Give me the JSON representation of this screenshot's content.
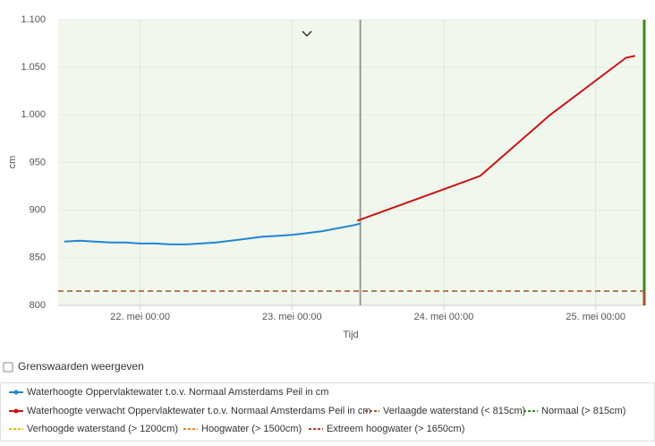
{
  "chart_data": {
    "type": "line",
    "x_label": "Tijd",
    "y_label": "cm",
    "xlim": [
      21.46,
      25.32
    ],
    "ylim": [
      800,
      1100
    ],
    "xticks": [
      {
        "value": 22,
        "label": "22. mei 00:00"
      },
      {
        "value": 23,
        "label": "23. mei 00:00"
      },
      {
        "value": 24,
        "label": "24. mei 00:00"
      },
      {
        "value": 25,
        "label": "25. mei 00:00"
      }
    ],
    "yticks": [
      800,
      850,
      900,
      950,
      {
        "value": 1000,
        "label": "1.000"
      },
      {
        "value": 1050,
        "label": "1.050"
      },
      {
        "value": 1100,
        "label": "1.100"
      }
    ],
    "grid": true,
    "now_line": 23.45,
    "series": [
      {
        "name": "Waterhoogte Oppervlaktewater t.o.v. Normaal Amsterdams Peil in cm",
        "color": "#1f86d4",
        "x": [
          21.5,
          21.6,
          21.7,
          21.8,
          21.9,
          22.0,
          22.1,
          22.2,
          22.3,
          22.4,
          22.5,
          22.6,
          22.7,
          22.8,
          22.9,
          23.0,
          23.1,
          23.2,
          23.3,
          23.4,
          23.45
        ],
        "values": [
          867,
          868,
          867,
          866,
          866,
          865,
          865,
          864,
          864,
          865,
          866,
          868,
          870,
          872,
          873,
          874,
          876,
          878,
          881,
          884,
          886
        ]
      },
      {
        "name": "Waterhoogte verwacht Oppervlaktewater t.o.v. Normaal Amsterdams Peil in cm",
        "color": "#c81414",
        "x": [
          23.43,
          24.0,
          24.24,
          24.7,
          25.2,
          25.26
        ],
        "values": [
          889,
          922,
          936,
          1000,
          1060,
          1062
        ]
      }
    ],
    "thresholds": [
      {
        "name": "Verlaagde waterstand (< 815cm)",
        "color": "#a0522d",
        "value": 815
      },
      {
        "name": "Normaal (> 815cm)",
        "color": "#3a8a1e",
        "value": 815
      },
      {
        "name": "Verhoogde waterstand (> 1200cm)",
        "color": "#f2b705"
      },
      {
        "name": "Hoogwater (> 1500cm)",
        "color": "#e8821e"
      },
      {
        "name": "Extreem hoogwater (> 1650cm)",
        "color": "#c0392b"
      }
    ],
    "checkbox_label": "Grenswaarden weergeven"
  }
}
